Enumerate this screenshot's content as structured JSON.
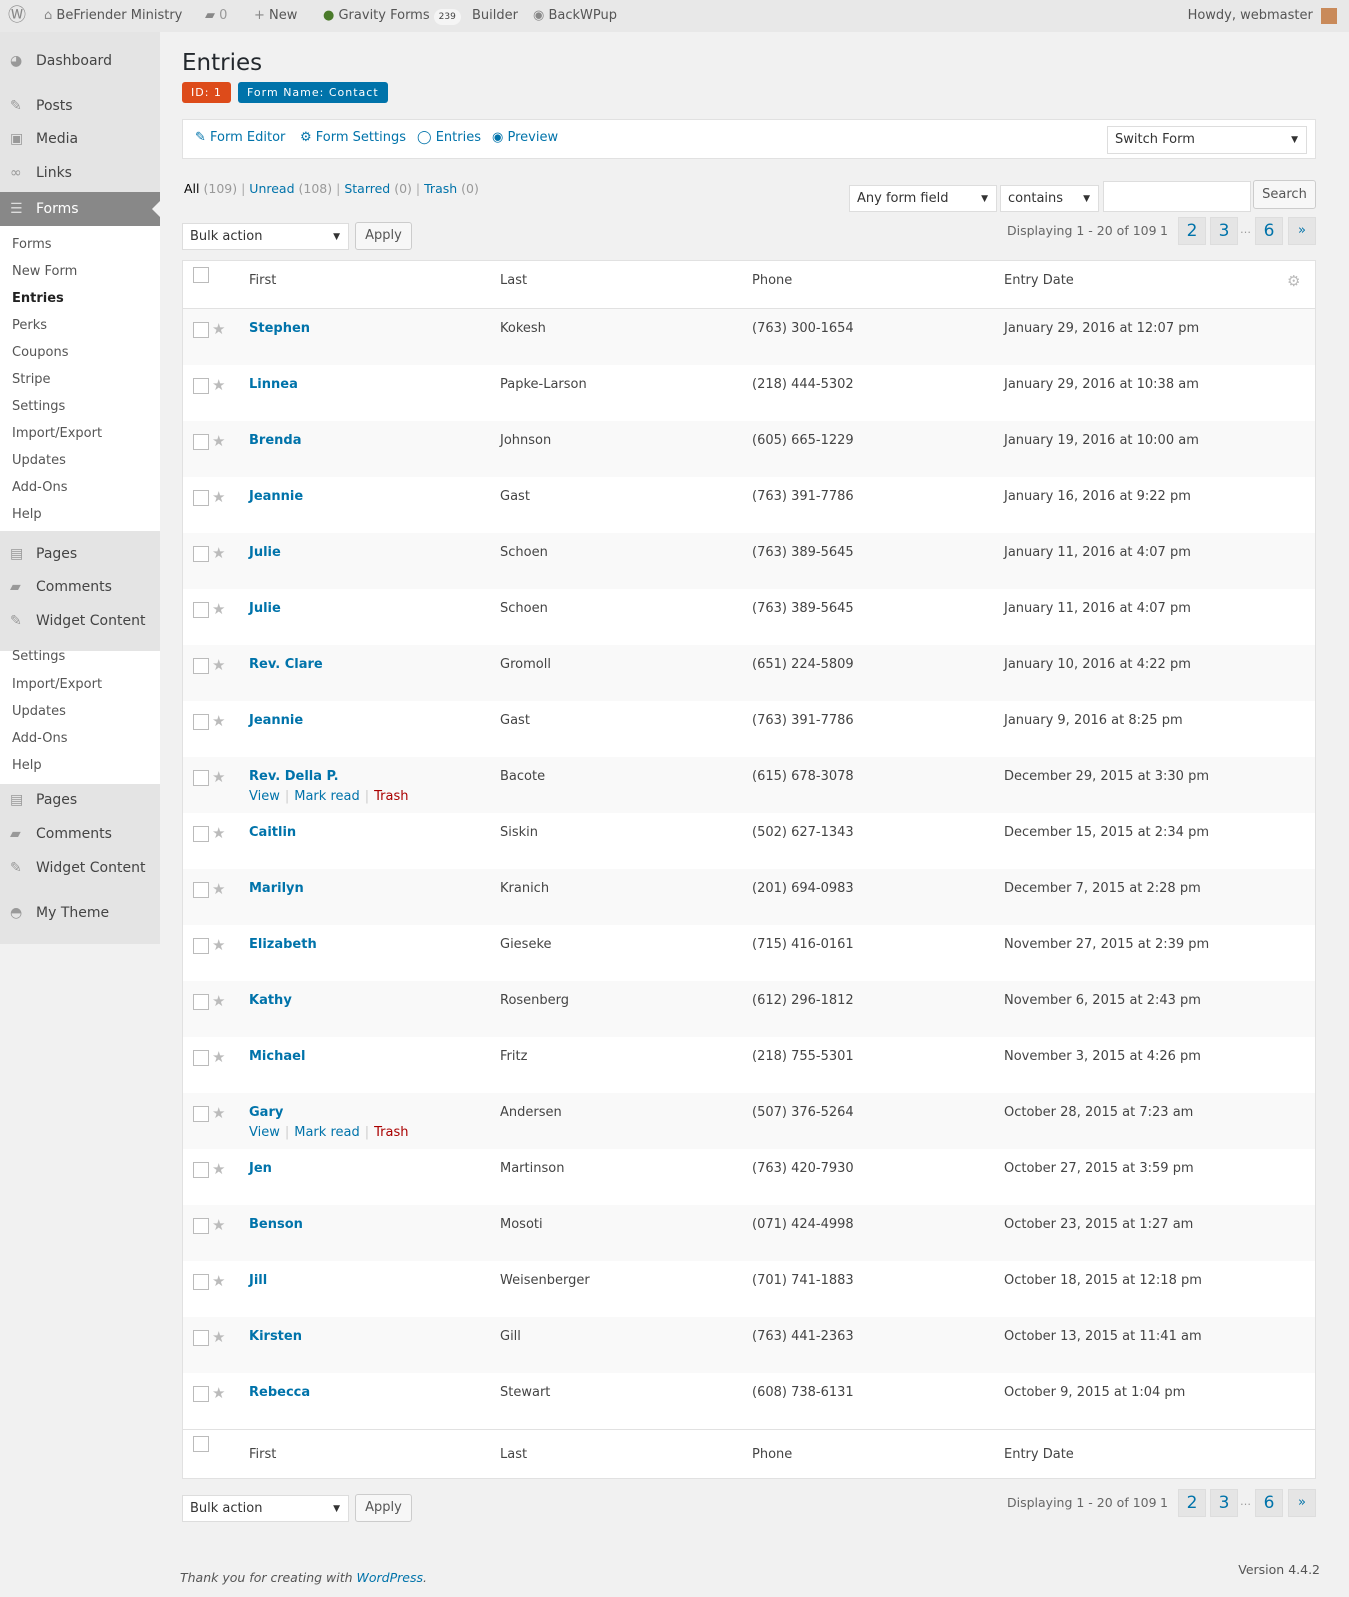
{
  "adminbar": {
    "site": "BeFriender Ministry",
    "comments": "0",
    "new": "New",
    "gravity": "Gravity Forms",
    "gravity_count": "239",
    "builder": "Builder",
    "backwpup": "BackWPup",
    "howdy": "Howdy, webmaster"
  },
  "sidebar": {
    "top": [
      {
        "label": "Dashboard",
        "icon": "dashboard-icon"
      },
      {
        "label": "Posts",
        "icon": "pin-icon"
      },
      {
        "label": "Media",
        "icon": "media-icon"
      },
      {
        "label": "Links",
        "icon": "link-icon"
      }
    ],
    "active": "Forms",
    "submenu": [
      "Forms",
      "New Form",
      "Entries",
      "Perks",
      "Coupons",
      "Stripe",
      "Settings",
      "Import/Export",
      "Updates",
      "Add-Ons",
      "Help"
    ],
    "mid": [
      "Pages",
      "Comments",
      "Widget Content"
    ],
    "flyout": [
      "Settings",
      "Import/Export",
      "Updates",
      "Add-Ons",
      "Help"
    ],
    "bottom": [
      "Pages",
      "Comments",
      "Widget Content",
      "My Theme"
    ]
  },
  "page": {
    "title": "Entries",
    "id_badge": "ID: 1",
    "form_badge": "Form Name: Contact"
  },
  "toolbar": {
    "form_editor": "Form Editor",
    "form_settings": "Form Settings",
    "entries": "Entries",
    "preview": "Preview",
    "switch_form": "Switch Form"
  },
  "filters": {
    "all": "All",
    "all_count": "(109)",
    "unread": "Unread",
    "unread_count": "(108)",
    "starred": "Starred",
    "starred_count": "(0)",
    "trash": "Trash",
    "trash_count": "(0)"
  },
  "search": {
    "field": "Any form field",
    "operator": "contains",
    "value": "",
    "button": "Search"
  },
  "bulk": {
    "label": "Bulk action",
    "apply": "Apply"
  },
  "pagination": {
    "displaying": "Displaying 1 - 20 of 109",
    "current": "1",
    "pages": [
      "2",
      "3"
    ],
    "ellipsis": "…",
    "last": "6",
    "next": "»"
  },
  "table": {
    "columns": [
      "First",
      "Last",
      "Phone",
      "Entry Date"
    ],
    "row_actions": {
      "view": "View",
      "mark_read": "Mark read",
      "trash": "Trash"
    },
    "rows": [
      {
        "first": "Stephen",
        "last": "Kokesh",
        "phone": "(763) 300-1654",
        "date": "January 29, 2016 at 12:07 pm"
      },
      {
        "first": "Linnea",
        "last": "Papke-Larson",
        "phone": "(218) 444-5302",
        "date": "January 29, 2016 at 10:38 am"
      },
      {
        "first": "Brenda",
        "last": "Johnson",
        "phone": "(605) 665-1229",
        "date": "January 19, 2016 at 10:00 am"
      },
      {
        "first": "Jeannie",
        "last": "Gast",
        "phone": "(763) 391-7786",
        "date": "January 16, 2016 at 9:22 pm"
      },
      {
        "first": "Julie",
        "last": "Schoen",
        "phone": "(763) 389-5645",
        "date": "January 11, 2016 at 4:07 pm"
      },
      {
        "first": "Julie",
        "last": "Schoen",
        "phone": "(763) 389-5645",
        "date": "January 11, 2016 at 4:07 pm"
      },
      {
        "first": "Rev. Clare",
        "last": "Gromoll",
        "phone": "(651) 224-5809",
        "date": "January 10, 2016 at 4:22 pm"
      },
      {
        "first": "Jeannie",
        "last": "Gast",
        "phone": "(763) 391-7786",
        "date": "January 9, 2016 at 8:25 pm"
      },
      {
        "first": "Rev. Della P.",
        "last": "Bacote",
        "phone": "(615) 678-3078",
        "date": "December 29, 2015 at 3:30 pm",
        "actions": true
      },
      {
        "first": "Caitlin",
        "last": "Siskin",
        "phone": "(502) 627-1343",
        "date": "December 15, 2015 at 2:34 pm"
      },
      {
        "first": "Marilyn",
        "last": "Kranich",
        "phone": "(201) 694-0983",
        "date": "December 7, 2015 at 2:28 pm"
      },
      {
        "first": "Elizabeth",
        "last": "Gieseke",
        "phone": "(715) 416-0161",
        "date": "November 27, 2015 at 2:39 pm"
      },
      {
        "first": "Kathy",
        "last": "Rosenberg",
        "phone": "(612) 296-1812",
        "date": "November 6, 2015 at 2:43 pm"
      },
      {
        "first": "Michael",
        "last": "Fritz",
        "phone": "(218) 755-5301",
        "date": "November 3, 2015 at 4:26 pm"
      },
      {
        "first": "Gary",
        "last": "Andersen",
        "phone": "(507) 376-5264",
        "date": "October 28, 2015 at 7:23 am",
        "actions": true
      },
      {
        "first": "Jen",
        "last": "Martinson",
        "phone": "(763) 420-7930",
        "date": "October 27, 2015 at 3:59 pm"
      },
      {
        "first": "Benson",
        "last": "Mosoti",
        "phone": "(071) 424-4998",
        "date": "October 23, 2015 at 1:27 am"
      },
      {
        "first": "Jill",
        "last": "Weisenberger",
        "phone": "(701) 741-1883",
        "date": "October 18, 2015 at 12:18 pm"
      },
      {
        "first": "Kirsten",
        "last": "Gill",
        "phone": "(763) 441-2363",
        "date": "October 13, 2015 at 11:41 am"
      },
      {
        "first": "Rebecca",
        "last": "Stewart",
        "phone": "(608) 738-6131",
        "date": "October 9, 2015 at 1:04 pm"
      }
    ]
  },
  "footer": {
    "thanks": "Thank you for creating with ",
    "wp": "WordPress",
    "period": ".",
    "version": "Version 4.4.2"
  },
  "colors": {
    "id_badge": "#dd4b1a",
    "form_badge": "#0073aa",
    "link": "#0073aa",
    "trash": "#a00",
    "active_menu": "#888888"
  }
}
